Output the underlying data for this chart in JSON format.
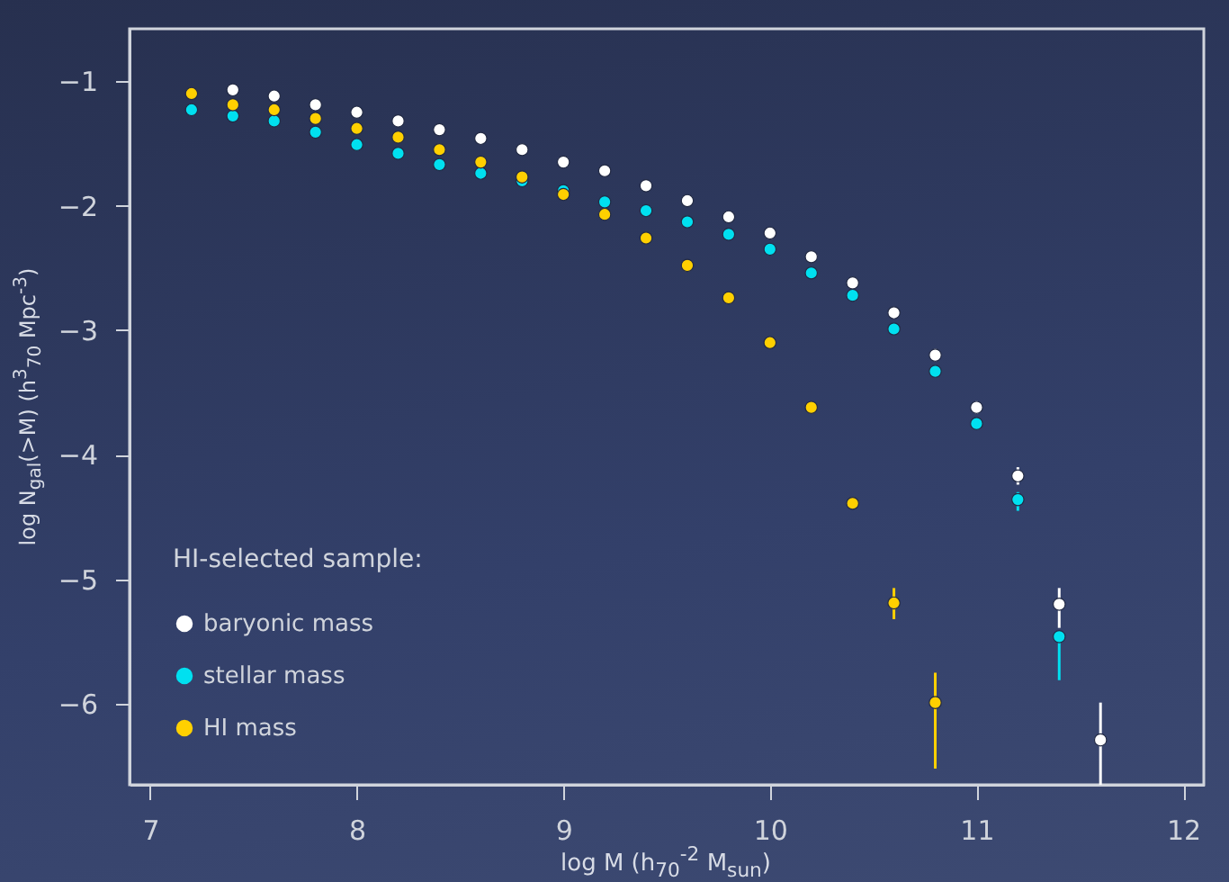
{
  "chart_data": {
    "type": "scatter",
    "xlabel": "log M  (h$_{70}$$^{-2}$ M$_{sun}$)",
    "ylabel": "log N$_{gal}$(>M)   (h$^{3}$$_{70}$ Mpc$^{-3}$)",
    "legend_title": "HI-selected sample:",
    "legend": "bottom left",
    "marker": "circle",
    "x": [
      7.2,
      7.4,
      7.6,
      7.8,
      8.0,
      8.2,
      8.4,
      8.6,
      8.8,
      9.0,
      9.2,
      9.4,
      9.6,
      9.8,
      10.0,
      10.2,
      10.4,
      10.6,
      10.8,
      11.0,
      11.2,
      11.4,
      11.6
    ],
    "xlim": [
      6.9,
      12.1
    ],
    "xticks": [
      7,
      8,
      9,
      10,
      11,
      12
    ],
    "ylim": [
      -6.65,
      -0.58
    ],
    "yticks": [
      -6,
      -5,
      -4,
      -3,
      -2,
      -1
    ],
    "series": [
      {
        "name": "baryonic mass",
        "color": "#ffffff",
        "values": [
          null,
          -1.07,
          -1.12,
          -1.19,
          -1.25,
          -1.32,
          -1.39,
          -1.46,
          -1.55,
          -1.65,
          -1.72,
          -1.84,
          -1.96,
          -2.09,
          -2.22,
          -2.41,
          -2.62,
          -2.86,
          -3.2,
          -3.62,
          -4.17,
          -5.2,
          -6.29
        ],
        "errors": [
          null,
          0.04,
          0.04,
          0.04,
          0.04,
          0.04,
          0.04,
          0.03,
          0.03,
          0.03,
          0.03,
          0.03,
          0.03,
          0.04,
          0.04,
          0.04,
          0.04,
          0.04,
          0.05,
          0.05,
          0.07,
          [
            -5.39,
            -5.07
          ],
          [
            -6.65,
            -5.99
          ]
        ]
      },
      {
        "name": "stellar mass",
        "color": "#00e0f0",
        "values": [
          -1.23,
          -1.28,
          -1.32,
          -1.41,
          -1.51,
          -1.58,
          -1.67,
          -1.74,
          -1.8,
          -1.88,
          -1.97,
          -2.04,
          -2.13,
          -2.23,
          -2.35,
          -2.54,
          -2.72,
          -2.99,
          -3.33,
          -3.75,
          -4.36,
          -5.46,
          null
        ],
        "errors": [
          null,
          null,
          null,
          null,
          null,
          null,
          null,
          null,
          null,
          null,
          null,
          null,
          null,
          null,
          null,
          null,
          null,
          null,
          null,
          null,
          [
            -4.45,
            -4.3
          ],
          [
            -5.81,
            -5.43
          ],
          null
        ]
      },
      {
        "name": "HI mass",
        "color": "#ffd000",
        "values": [
          -1.1,
          -1.19,
          -1.23,
          -1.3,
          -1.38,
          -1.45,
          -1.55,
          -1.65,
          -1.77,
          -1.91,
          -2.07,
          -2.26,
          -2.48,
          -2.74,
          -3.1,
          -3.62,
          -4.39,
          -5.19,
          -5.99,
          null,
          null,
          null,
          null
        ],
        "errors": [
          null,
          null,
          null,
          null,
          null,
          null,
          null,
          null,
          null,
          null,
          null,
          null,
          null,
          null,
          null,
          null,
          null,
          [
            -5.32,
            -5.07
          ],
          [
            -6.52,
            -5.75
          ],
          null,
          null,
          null,
          null
        ]
      }
    ]
  }
}
